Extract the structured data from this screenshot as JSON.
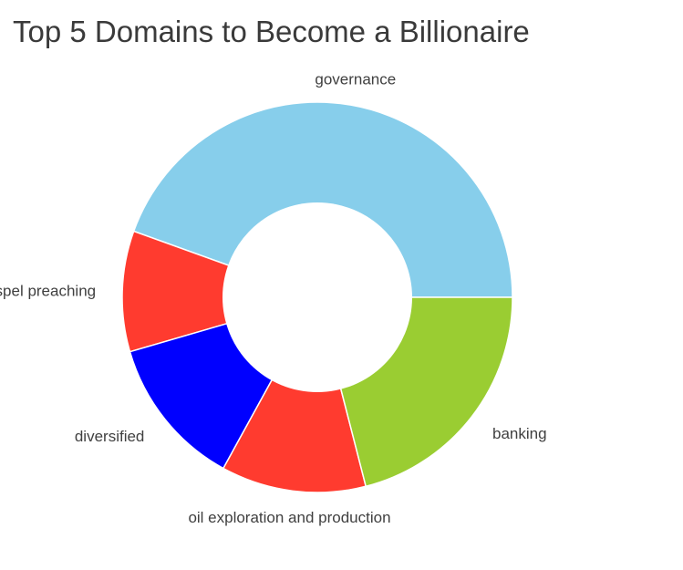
{
  "chart_data": {
    "type": "pie",
    "subtype": "donut",
    "title": "Top 5 Domains to Become a Billionaire",
    "legend": "none",
    "slices": [
      {
        "label": "governance",
        "value": 44.5,
        "color": "#87CEEB"
      },
      {
        "label": "gospel preaching",
        "value": 10.0,
        "color": "#FF3B2F"
      },
      {
        "label": "diversified",
        "value": 12.5,
        "color": "#0000FF"
      },
      {
        "label": "oil exploration and production",
        "value": 12.0,
        "color": "#FF3B2F"
      },
      {
        "label": "banking",
        "value": 21.0,
        "color": "#9ACD32"
      }
    ]
  }
}
